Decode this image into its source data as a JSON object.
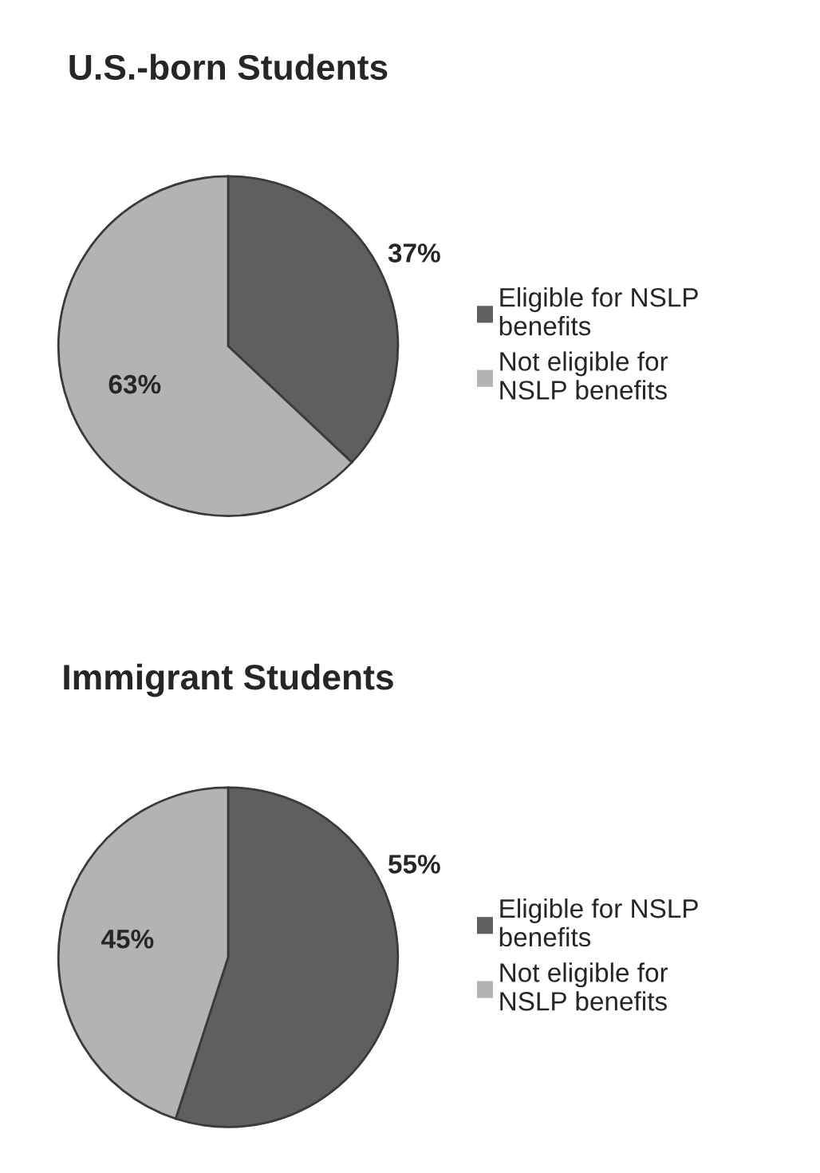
{
  "chart_data": [
    {
      "type": "pie",
      "title": "U.S.-born Students",
      "categories": [
        "Eligible for NSLP benefits",
        "Not eligible for NSLP benefits"
      ],
      "values": [
        37,
        63
      ],
      "colors": [
        "#5f5f5f",
        "#b3b3b3"
      ],
      "value_labels": [
        "37%",
        "63%"
      ],
      "legend": "right"
    },
    {
      "type": "pie",
      "title": "Immigrant Students",
      "categories": [
        "Eligible for NSLP benefits",
        "Not eligible for NSLP benefits"
      ],
      "values": [
        55,
        45
      ],
      "colors": [
        "#5f5f5f",
        "#b3b3b3"
      ],
      "value_labels": [
        "55%",
        "45%"
      ],
      "legend": "right"
    }
  ]
}
